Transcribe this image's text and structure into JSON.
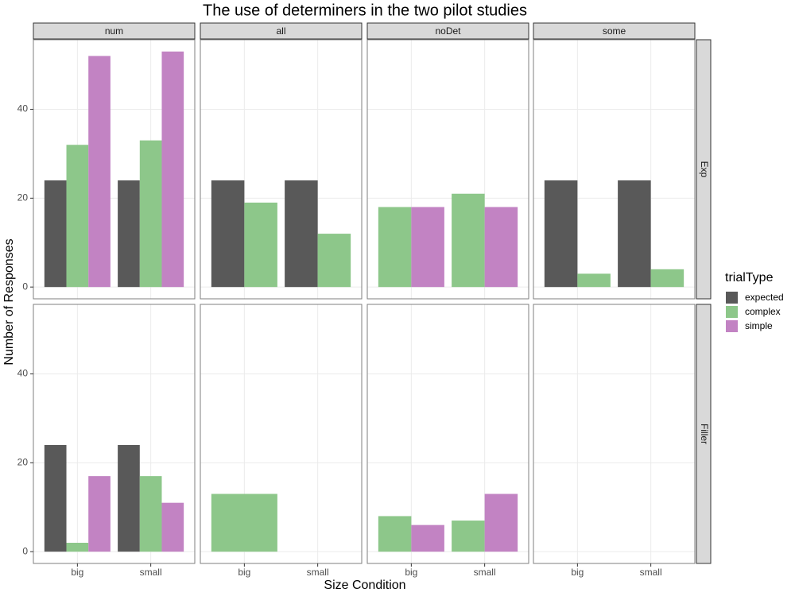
{
  "chart_data": {
    "type": "bar",
    "title": "The use of determiners in the two pilot studies",
    "x_label": "Size Condition",
    "y_label": "Number of Responses",
    "legend_title": "trialType",
    "facet_columns": [
      "num",
      "all",
      "noDet",
      "some"
    ],
    "facet_rows": [
      "Exp",
      "Filler"
    ],
    "categories": [
      "big",
      "small"
    ],
    "series": [
      {
        "name": "expected",
        "color": "#595959"
      },
      {
        "name": "complex",
        "color": "#8dc78a"
      },
      {
        "name": "simple",
        "color": "#c283c3"
      }
    ],
    "panels": [
      [
        [
          [
            24,
            24
          ],
          [
            32,
            33
          ],
          [
            52,
            53
          ]
        ],
        [
          [
            24,
            24
          ],
          [
            19,
            12
          ],
          [
            null,
            null
          ]
        ],
        [
          [
            null,
            null
          ],
          [
            18,
            21
          ],
          [
            18,
            18
          ]
        ],
        [
          [
            24,
            24
          ],
          [
            3,
            4
          ],
          [
            null,
            null
          ]
        ]
      ],
      [
        [
          [
            24,
            24
          ],
          [
            2,
            17
          ],
          [
            17,
            11
          ]
        ],
        [
          [
            null,
            null
          ],
          [
            13,
            null
          ],
          [
            null,
            null
          ]
        ],
        [
          [
            null,
            null
          ],
          [
            8,
            7
          ],
          [
            6,
            13
          ]
        ],
        [
          [
            null,
            null
          ],
          [
            null,
            null
          ],
          [
            null,
            null
          ]
        ]
      ]
    ],
    "ylim": [
      -2.65,
      55.65
    ],
    "yticks": [
      0,
      20,
      40
    ],
    "grid": true
  }
}
